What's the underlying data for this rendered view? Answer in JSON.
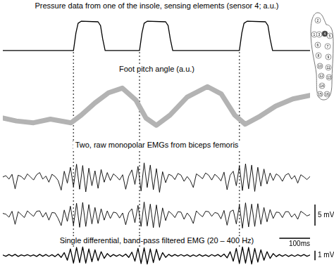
{
  "events": [
    230,
    445,
    770
  ],
  "insole": {
    "sensors": [
      1,
      2,
      3,
      4,
      5,
      6,
      7,
      8,
      9,
      10,
      11,
      12,
      13,
      14,
      15,
      16
    ],
    "highlighted": 4
  },
  "chart_data": [
    {
      "type": "line",
      "title": "Pressure data from one of the insole, sensing elements (sensor 4; a.u.)",
      "x": [
        0,
        230,
        238,
        245,
        255,
        310,
        318,
        325,
        333,
        445,
        453,
        460,
        470,
        530,
        538,
        545,
        553,
        770,
        778,
        785,
        795,
        855,
        863,
        870,
        878,
        1000
      ],
      "series": [
        {
          "color": "#000000",
          "values": [
            0,
            0,
            0.6,
            0.93,
            1,
            0.98,
            0.85,
            0.4,
            0,
            0,
            0.6,
            0.93,
            1,
            0.98,
            0.85,
            0.4,
            0,
            0,
            0.6,
            0.93,
            1,
            0.98,
            0.85,
            0.4,
            0,
            0
          ]
        }
      ],
      "xlim": [
        0,
        1000
      ],
      "ylim": [
        -0.05,
        1.1
      ],
      "tick_labels": false,
      "grid": false
    },
    {
      "type": "line",
      "title": "Foot pitch angle (a.u.)",
      "x": [
        0,
        44,
        100,
        155,
        222,
        255,
        300,
        344,
        389,
        433,
        466,
        500,
        544,
        600,
        666,
        711,
        755,
        789,
        833,
        888,
        944,
        1000
      ],
      "series": [
        {
          "color": "#b3b3b3",
          "values": [
            0.25,
            0.17,
            0.12,
            0.22,
            0.12,
            0.33,
            0.67,
            0.95,
            1.08,
            0.75,
            0.25,
            0.05,
            0.33,
            0.83,
            1.12,
            0.92,
            0.33,
            0.08,
            0.28,
            0.58,
            0.78,
            0.88
          ]
        }
      ],
      "xlim": [
        0,
        1000
      ],
      "ylim": [
        -0.1,
        1.3
      ],
      "tick_labels": false,
      "grid": false
    },
    {
      "type": "line",
      "title": "Two, raw monopolar EMGs from biceps femoris",
      "x": [
        0,
        10,
        20,
        30,
        40,
        50,
        60,
        70,
        80,
        90,
        100,
        110,
        120,
        130,
        140,
        150,
        160,
        170,
        180,
        190,
        200,
        210,
        220,
        230,
        240,
        250,
        260,
        270,
        280,
        290,
        300,
        310,
        320,
        330,
        340,
        350,
        360,
        370,
        380,
        390,
        400,
        410,
        420,
        430,
        440,
        450,
        460,
        470,
        480,
        490,
        500,
        510,
        520,
        530,
        540,
        550,
        560,
        570,
        580,
        590,
        600,
        610,
        620,
        630,
        640,
        650,
        660,
        670,
        680,
        690,
        700,
        710,
        720,
        730,
        740,
        750,
        760,
        770,
        780,
        790,
        800,
        810,
        820,
        830,
        840,
        850,
        860,
        870,
        880,
        890,
        900,
        910,
        920,
        930,
        940,
        950,
        960,
        970,
        980,
        990,
        1000
      ],
      "series": [
        {
          "color": "#000000",
          "values": [
            0.2,
            0.5,
            -0.3,
            0.8,
            -2.5,
            0.6,
            0.3,
            -0.4,
            0.9,
            0.2,
            -0.5,
            0.7,
            1.2,
            -0.3,
            0.4,
            -1.0,
            0.8,
            0.3,
            -0.6,
            -2.8,
            1.5,
            -1.2,
            2.4,
            -2.0,
            3.1,
            -2.6,
            2.8,
            -3.2,
            2.2,
            -1.8,
            1.6,
            -2.4,
            1.9,
            -1.0,
            1.2,
            -0.6,
            0.9,
            0.3,
            -0.5,
            0.7,
            -2.6,
            0.4,
            1.8,
            -1.5,
            2.6,
            -3.0,
            3.4,
            -2.2,
            2.9,
            -2.7,
            2.1,
            -3.3,
            1.4,
            -1.1,
            0.8,
            0.5,
            -0.4,
            1.0,
            0.6,
            -0.8,
            0.3,
            -0.6,
            -2.2,
            0.9,
            0.4,
            -0.2,
            1.1,
            0.6,
            -0.5,
            0.8,
            0.2,
            -0.7,
            1.3,
            -2.7,
            0.6,
            1.5,
            -1.8,
            2.7,
            -2.9,
            3.2,
            -2.5,
            2.9,
            -3.1,
            2.4,
            -1.9,
            2.0,
            -1.4,
            1.1,
            -0.6,
            0.9,
            0.4,
            -0.8,
            0.6,
            1.0,
            -0.3,
            0.5,
            -1.2,
            0.7,
            0.2,
            -0.4,
            0.3
          ]
        },
        {
          "color": "#000000",
          "values": [
            0.4,
            0.2,
            -0.5,
            0.9,
            -2.2,
            0.8,
            0.1,
            -0.6,
            1.0,
            0.3,
            -0.3,
            0.9,
            1.0,
            -0.5,
            0.6,
            -1.2,
            0.6,
            0.5,
            -0.8,
            -2.5,
            1.2,
            -1.5,
            2.1,
            -2.4,
            2.8,
            -2.9,
            3.0,
            -2.7,
            2.5,
            -2.1,
            1.8,
            -2.0,
            1.5,
            -1.2,
            1.0,
            -0.8,
            0.7,
            0.5,
            -0.7,
            0.5,
            -2.3,
            0.6,
            1.5,
            -1.8,
            2.3,
            -2.7,
            3.1,
            -2.6,
            2.6,
            -3.0,
            2.4,
            -2.9,
            1.7,
            -1.3,
            0.9,
            0.3,
            -0.6,
            0.8,
            0.7,
            -1.0,
            0.5,
            -0.4,
            -2.0,
            1.0,
            0.2,
            -0.4,
            0.9,
            0.8,
            -0.3,
            0.6,
            0.4,
            -0.9,
            1.1,
            -2.4,
            0.8,
            1.2,
            -2.1,
            2.4,
            -3.1,
            2.9,
            -2.8,
            2.6,
            -2.7,
            2.7,
            -2.2,
            1.8,
            -1.6,
            1.3,
            -0.8,
            0.7,
            0.6,
            -0.6,
            0.8,
            0.8,
            -0.5,
            0.3,
            -1.0,
            0.9,
            0.4,
            -0.2,
            0.1
          ]
        }
      ],
      "xlim": [
        0,
        1000
      ],
      "ylim": [
        -4,
        4
      ],
      "tick_labels": false,
      "grid": false,
      "scale_bars": [
        {
          "axis": "y",
          "value": 5,
          "label": "5 mV"
        }
      ]
    },
    {
      "type": "line",
      "title": "Single differential, band-pass filtered EMG (20 – 400 Hz)",
      "x": [
        0,
        10,
        20,
        30,
        40,
        50,
        60,
        70,
        80,
        90,
        100,
        110,
        120,
        130,
        140,
        150,
        160,
        170,
        180,
        190,
        200,
        210,
        220,
        230,
        240,
        250,
        260,
        270,
        280,
        290,
        300,
        310,
        320,
        330,
        340,
        350,
        360,
        370,
        380,
        390,
        400,
        410,
        420,
        430,
        440,
        450,
        460,
        470,
        480,
        490,
        500,
        510,
        520,
        530,
        540,
        550,
        560,
        570,
        580,
        590,
        600,
        610,
        620,
        630,
        640,
        650,
        660,
        670,
        680,
        690,
        700,
        710,
        720,
        730,
        740,
        750,
        760,
        770,
        780,
        790,
        800,
        810,
        820,
        830,
        840,
        850,
        860,
        870,
        880,
        890,
        900,
        910,
        920,
        930,
        940,
        950,
        960,
        970,
        980,
        990,
        1000
      ],
      "series": [
        {
          "color": "#000000",
          "values": [
            0.05,
            -0.08,
            0.1,
            -0.06,
            0.12,
            -0.1,
            0.07,
            -0.05,
            0.09,
            -0.07,
            0.06,
            -0.1,
            0.12,
            -0.08,
            0.1,
            -0.09,
            0.08,
            -0.12,
            0.15,
            -0.2,
            0.3,
            -0.5,
            0.7,
            -0.8,
            0.85,
            -0.75,
            0.9,
            -0.8,
            0.7,
            -0.65,
            0.6,
            -0.55,
            0.4,
            -0.3,
            0.2,
            -0.12,
            0.1,
            -0.08,
            0.09,
            -0.1,
            0.15,
            -0.2,
            0.35,
            -0.6,
            0.75,
            -0.85,
            0.8,
            -0.9,
            0.7,
            -0.75,
            0.65,
            -0.5,
            0.3,
            -0.2,
            0.12,
            -0.08,
            0.1,
            -0.07,
            0.09,
            -0.06,
            0.08,
            -0.1,
            0.07,
            -0.09,
            0.1,
            -0.08,
            0.06,
            -0.1,
            0.09,
            -0.07,
            0.1,
            -0.12,
            0.15,
            -0.25,
            0.4,
            -0.6,
            0.75,
            -0.85,
            0.9,
            -0.8,
            0.85,
            -0.9,
            0.75,
            -0.7,
            0.6,
            -0.5,
            0.4,
            -0.3,
            0.2,
            -0.12,
            0.1,
            -0.08,
            0.09,
            -0.1,
            0.07,
            -0.09,
            0.08,
            -0.06,
            0.1,
            -0.08,
            0.05
          ]
        }
      ],
      "xlim": [
        0,
        1000
      ],
      "ylim": [
        -1,
        1
      ],
      "tick_labels": false,
      "grid": false,
      "scale_bars": [
        {
          "axis": "y",
          "value": 1,
          "label": "1 mV"
        },
        {
          "axis": "x",
          "value": 100,
          "label": "100ms"
        }
      ]
    }
  ]
}
